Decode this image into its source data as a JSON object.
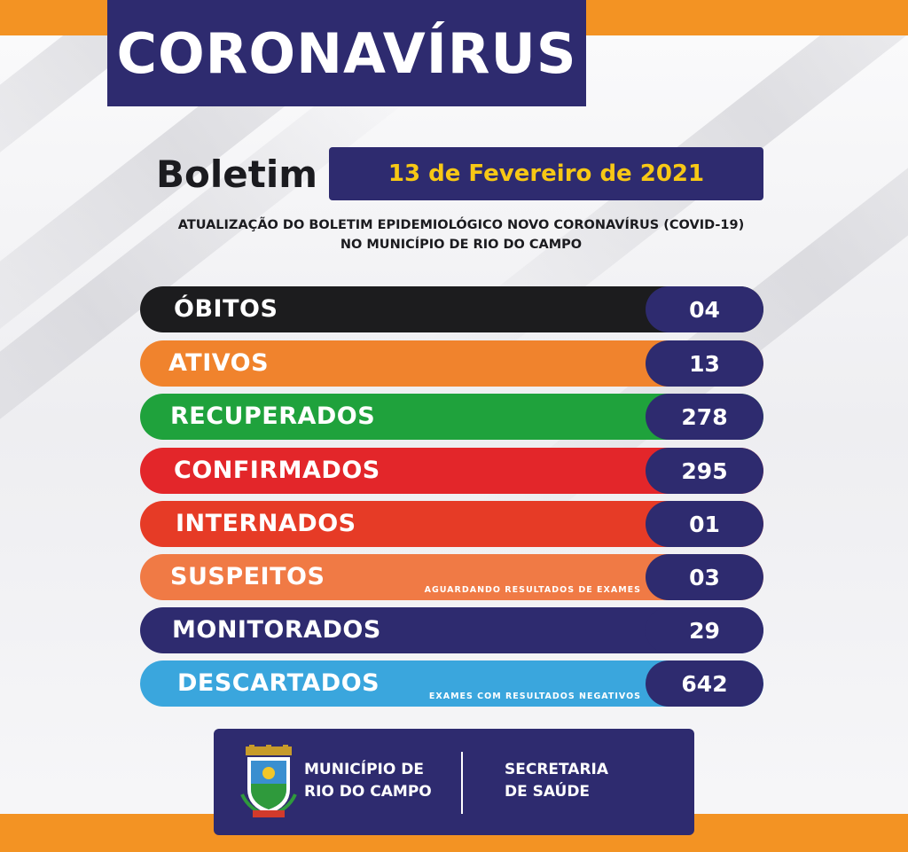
{
  "header": {
    "title": "CORONAVÍRUS"
  },
  "bulletin": {
    "label": "Boletim",
    "date": "13 de Fevereiro de 2021",
    "subtitle_line1": "ATUALIZAÇÃO DO BOLETIM EPIDEMIOLÓGICO NOVO CORONAVÍRUS (COVID-19)",
    "subtitle_line2": "NO MUNICÍPIO DE RIO DO CAMPO"
  },
  "stats": [
    {
      "label": "ÓBITOS",
      "value": "04",
      "note": "",
      "color": "#1c1c1e"
    },
    {
      "label": "ATIVOS",
      "value": "13",
      "note": "",
      "color": "#f0832d"
    },
    {
      "label": "RECUPERADOS",
      "value": "278",
      "note": "",
      "color": "#1fa23c"
    },
    {
      "label": "CONFIRMADOS",
      "value": "295",
      "note": "",
      "color": "#e3262a"
    },
    {
      "label": "INTERNADOS",
      "value": "01",
      "note": "",
      "color": "#e63b26"
    },
    {
      "label": "SUSPEITOS",
      "value": "03",
      "note": "AGUARDANDO RESULTADOS DE EXAMES",
      "color": "#f07a45"
    },
    {
      "label": "MONITORADOS",
      "value": "29",
      "note": "",
      "color": "#2e2b6f"
    },
    {
      "label": "DESCARTADOS",
      "value": "642",
      "note": "EXAMES COM RESULTADOS NEGATIVOS",
      "color": "#3aa6dd"
    }
  ],
  "footer": {
    "municipality_line1": "MUNICÍPIO DE",
    "municipality_line2": "RIO DO CAMPO",
    "secretariat_line1": "SECRETARIA",
    "secretariat_line2": "DE SAÚDE",
    "seal_icon": "municipal-coat-of-arms-icon"
  },
  "colors": {
    "navy": "#2e2b6f",
    "orange": "#f39323",
    "date_yellow": "#f7c815"
  }
}
